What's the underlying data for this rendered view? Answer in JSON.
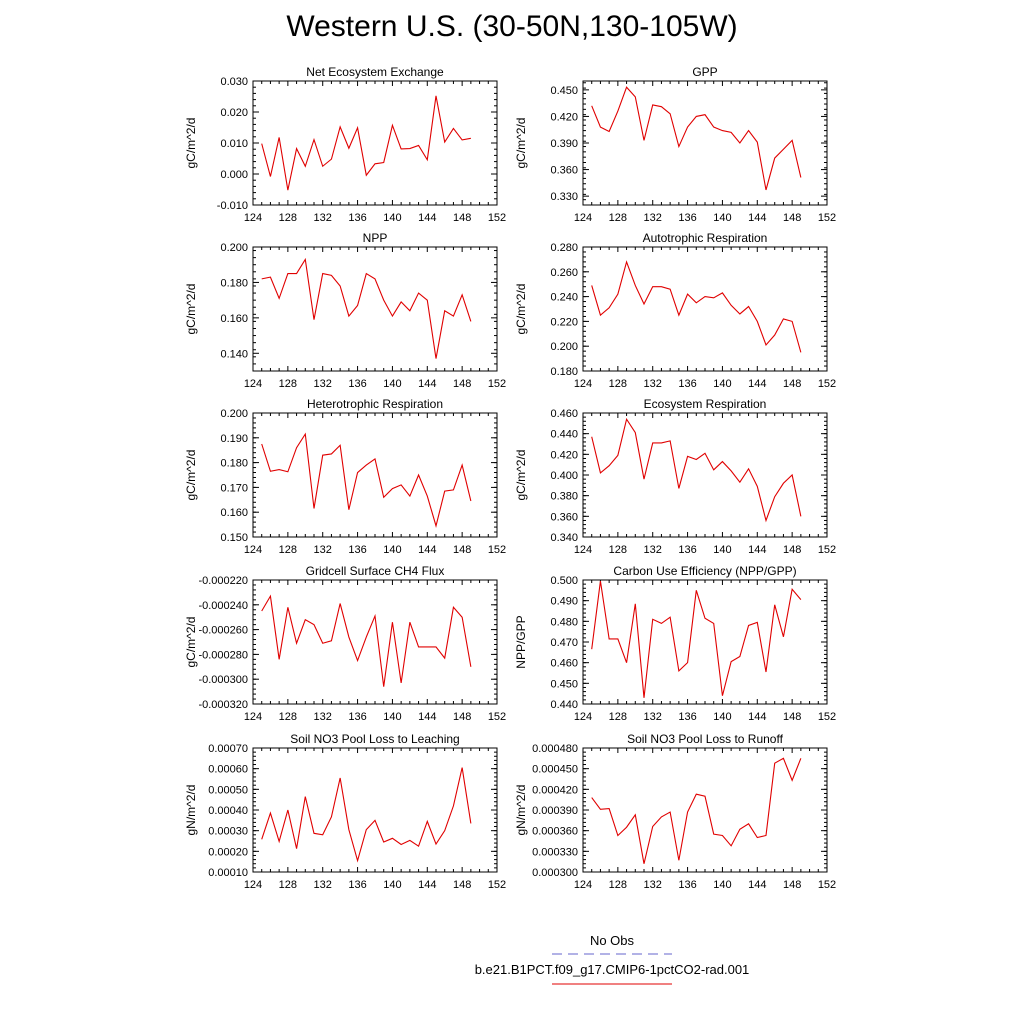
{
  "title": "Western U.S. (30-50N,130-105W)",
  "legend": [
    {
      "label": "No Obs",
      "color": "#6666cc",
      "dash": "dashed"
    },
    {
      "label": "b.e21.B1PCT.f09_g17.CMIP6-1pctCO2-rad.001",
      "color": "#e00000",
      "dash": "solid"
    }
  ],
  "chart_data": [
    {
      "type": "line",
      "title": "Net Ecosystem Exchange",
      "ylabel": "gC/m^2/d",
      "xlim": [
        124,
        152
      ],
      "ylim": [
        -0.01,
        0.03
      ],
      "xticks": [
        "124",
        "128",
        "132",
        "136",
        "140",
        "144",
        "148",
        "152"
      ],
      "yticks": [
        "-0.010",
        "0.000",
        "0.010",
        "0.020",
        "0.030"
      ],
      "x": [
        125,
        126,
        127,
        128,
        129,
        130,
        131,
        132,
        133,
        134,
        135,
        136,
        137,
        138,
        139,
        140,
        141,
        142,
        143,
        144,
        145,
        146,
        147,
        148,
        149
      ],
      "series": [
        {
          "values": [
            0.0098,
            -0.0008,
            0.0118,
            -0.0052,
            0.0082,
            0.0025,
            0.0111,
            0.0025,
            0.0048,
            0.0152,
            0.0083,
            0.0149,
            -0.0004,
            0.0033,
            0.0037,
            0.0157,
            0.0081,
            0.0082,
            0.0092,
            0.0046,
            0.0252,
            0.0103,
            0.0147,
            0.011,
            0.0115
          ],
          "color": "#e00000"
        }
      ]
    },
    {
      "type": "line",
      "title": "GPP",
      "ylabel": "gC/m^2/d",
      "xlim": [
        124,
        152
      ],
      "ylim": [
        0.32,
        0.46
      ],
      "xticks": [
        "124",
        "128",
        "132",
        "136",
        "140",
        "144",
        "148",
        "152"
      ],
      "yticks": [
        "0.330",
        "0.360",
        "0.390",
        "0.420",
        "0.450"
      ],
      "x": [
        125,
        126,
        127,
        128,
        129,
        130,
        131,
        132,
        133,
        134,
        135,
        136,
        137,
        138,
        139,
        140,
        141,
        142,
        143,
        144,
        145,
        146,
        147,
        148,
        149
      ],
      "series": [
        {
          "values": [
            0.432,
            0.408,
            0.403,
            0.426,
            0.453,
            0.442,
            0.393,
            0.433,
            0.431,
            0.423,
            0.386,
            0.408,
            0.42,
            0.422,
            0.408,
            0.404,
            0.402,
            0.39,
            0.404,
            0.391,
            0.337,
            0.373,
            0.383,
            0.393,
            0.351
          ],
          "color": "#e00000"
        }
      ]
    },
    {
      "type": "line",
      "title": "NPP",
      "ylabel": "gC/m^2/d",
      "xlim": [
        124,
        152
      ],
      "ylim": [
        0.13,
        0.2
      ],
      "xticks": [
        "124",
        "128",
        "132",
        "136",
        "140",
        "144",
        "148",
        "152"
      ],
      "yticks": [
        "0.140",
        "0.160",
        "0.180",
        "0.200"
      ],
      "x": [
        125,
        126,
        127,
        128,
        129,
        130,
        131,
        132,
        133,
        134,
        135,
        136,
        137,
        138,
        139,
        140,
        141,
        142,
        143,
        144,
        145,
        146,
        147,
        148,
        149
      ],
      "series": [
        {
          "values": [
            0.182,
            0.183,
            0.171,
            0.185,
            0.185,
            0.193,
            0.159,
            0.185,
            0.184,
            0.178,
            0.161,
            0.167,
            0.185,
            0.182,
            0.17,
            0.161,
            0.169,
            0.164,
            0.174,
            0.17,
            0.137,
            0.164,
            0.161,
            0.173,
            0.158
          ],
          "color": "#e00000"
        }
      ]
    },
    {
      "type": "line",
      "title": "Autotrophic Respiration",
      "ylabel": "gC/m^2/d",
      "xlim": [
        124,
        152
      ],
      "ylim": [
        0.18,
        0.28
      ],
      "xticks": [
        "124",
        "128",
        "132",
        "136",
        "140",
        "144",
        "148",
        "152"
      ],
      "yticks": [
        "0.180",
        "0.200",
        "0.220",
        "0.240",
        "0.260",
        "0.280"
      ],
      "x": [
        125,
        126,
        127,
        128,
        129,
        130,
        131,
        132,
        133,
        134,
        135,
        136,
        137,
        138,
        139,
        140,
        141,
        142,
        143,
        144,
        145,
        146,
        147,
        148,
        149
      ],
      "series": [
        {
          "values": [
            0.249,
            0.225,
            0.231,
            0.242,
            0.268,
            0.249,
            0.234,
            0.248,
            0.248,
            0.246,
            0.225,
            0.242,
            0.235,
            0.24,
            0.239,
            0.243,
            0.233,
            0.226,
            0.232,
            0.22,
            0.201,
            0.209,
            0.222,
            0.22,
            0.195
          ],
          "color": "#e00000"
        }
      ]
    },
    {
      "type": "line",
      "title": "Heterotrophic Respiration",
      "ylabel": "gC/m^2/d",
      "xlim": [
        124,
        152
      ],
      "ylim": [
        0.15,
        0.2
      ],
      "xticks": [
        "124",
        "128",
        "132",
        "136",
        "140",
        "144",
        "148",
        "152"
      ],
      "yticks": [
        "0.150",
        "0.160",
        "0.170",
        "0.180",
        "0.190",
        "0.200"
      ],
      "x": [
        125,
        126,
        127,
        128,
        129,
        130,
        131,
        132,
        133,
        134,
        135,
        136,
        137,
        138,
        139,
        140,
        141,
        142,
        143,
        144,
        145,
        146,
        147,
        148,
        149
      ],
      "series": [
        {
          "values": [
            0.1875,
            0.1765,
            0.1772,
            0.1763,
            0.186,
            0.1915,
            0.1615,
            0.183,
            0.1835,
            0.187,
            0.161,
            0.176,
            0.179,
            0.1815,
            0.166,
            0.1695,
            0.171,
            0.1665,
            0.175,
            0.1665,
            0.1545,
            0.1685,
            0.169,
            0.179,
            0.1645
          ],
          "color": "#e00000"
        }
      ]
    },
    {
      "type": "line",
      "title": "Ecosystem Respiration",
      "ylabel": "gC/m^2/d",
      "xlim": [
        124,
        152
      ],
      "ylim": [
        0.34,
        0.46
      ],
      "xticks": [
        "124",
        "128",
        "132",
        "136",
        "140",
        "144",
        "148",
        "152"
      ],
      "yticks": [
        "0.340",
        "0.360",
        "0.380",
        "0.400",
        "0.420",
        "0.440",
        "0.460"
      ],
      "x": [
        125,
        126,
        127,
        128,
        129,
        130,
        131,
        132,
        133,
        134,
        135,
        136,
        137,
        138,
        139,
        140,
        141,
        142,
        143,
        144,
        145,
        146,
        147,
        148,
        149
      ],
      "series": [
        {
          "values": [
            0.437,
            0.402,
            0.409,
            0.419,
            0.454,
            0.441,
            0.396,
            0.431,
            0.431,
            0.433,
            0.387,
            0.418,
            0.415,
            0.421,
            0.405,
            0.413,
            0.404,
            0.393,
            0.406,
            0.389,
            0.356,
            0.379,
            0.392,
            0.4,
            0.36
          ],
          "color": "#e00000"
        }
      ]
    },
    {
      "type": "line",
      "title": "Gridcell Surface CH4 Flux",
      "ylabel": "gC/m^2/d",
      "xlim": [
        124,
        152
      ],
      "ylim": [
        -0.00032,
        -0.00022
      ],
      "xticks": [
        "124",
        "128",
        "132",
        "136",
        "140",
        "144",
        "148",
        "152"
      ],
      "yticks": [
        "-0.000320",
        "-0.000300",
        "-0.000280",
        "-0.000260",
        "-0.000240",
        "-0.000220"
      ],
      "x": [
        125,
        126,
        127,
        128,
        129,
        130,
        131,
        132,
        133,
        134,
        135,
        136,
        137,
        138,
        139,
        140,
        141,
        142,
        143,
        144,
        145,
        146,
        147,
        148,
        149
      ],
      "series": [
        {
          "values": [
            -0.000245,
            -0.000233,
            -0.000284,
            -0.000242,
            -0.000271,
            -0.000252,
            -0.000256,
            -0.000271,
            -0.000269,
            -0.000239,
            -0.000266,
            -0.000285,
            -0.000266,
            -0.000249,
            -0.000306,
            -0.000254,
            -0.000303,
            -0.000254,
            -0.000274,
            -0.000274,
            -0.000274,
            -0.000283,
            -0.000242,
            -0.00025,
            -0.00029
          ],
          "color": "#e00000"
        }
      ]
    },
    {
      "type": "line",
      "title": "Carbon Use Efficiency (NPP/GPP)",
      "ylabel": "NPP/GPP",
      "xlim": [
        124,
        152
      ],
      "ylim": [
        0.44,
        0.5
      ],
      "xticks": [
        "124",
        "128",
        "132",
        "136",
        "140",
        "144",
        "148",
        "152"
      ],
      "yticks": [
        "0.440",
        "0.450",
        "0.460",
        "0.470",
        "0.480",
        "0.490",
        "0.500"
      ],
      "x": [
        125,
        126,
        127,
        128,
        129,
        130,
        131,
        132,
        133,
        134,
        135,
        136,
        137,
        138,
        139,
        140,
        141,
        142,
        143,
        144,
        145,
        146,
        147,
        148,
        149
      ],
      "series": [
        {
          "values": [
            0.4665,
            0.4995,
            0.4715,
            0.4715,
            0.46,
            0.4885,
            0.443,
            0.481,
            0.479,
            0.482,
            0.456,
            0.46,
            0.495,
            0.4815,
            0.479,
            0.444,
            0.4605,
            0.463,
            0.478,
            0.4795,
            0.4555,
            0.488,
            0.4725,
            0.4955,
            0.4905
          ],
          "color": "#e00000"
        }
      ]
    },
    {
      "type": "line",
      "title": "Soil NO3 Pool Loss to Leaching",
      "ylabel": "gN/m^2/d",
      "xlim": [
        124,
        152
      ],
      "ylim": [
        0.0001,
        0.0007
      ],
      "xticks": [
        "124",
        "128",
        "132",
        "136",
        "140",
        "144",
        "148",
        "152"
      ],
      "yticks": [
        "0.00010",
        "0.00020",
        "0.00030",
        "0.00040",
        "0.00050",
        "0.00060",
        "0.00070"
      ],
      "x": [
        125,
        126,
        127,
        128,
        129,
        130,
        131,
        132,
        133,
        134,
        135,
        136,
        137,
        138,
        139,
        140,
        141,
        142,
        143,
        144,
        145,
        146,
        147,
        148,
        149
      ],
      "series": [
        {
          "values": [
            0.000258,
            0.000385,
            0.000248,
            0.0004,
            0.000213,
            0.000465,
            0.000287,
            0.00028,
            0.000367,
            0.000555,
            0.000305,
            0.000155,
            0.000305,
            0.00035,
            0.000245,
            0.000263,
            0.000233,
            0.000253,
            0.000225,
            0.000345,
            0.000235,
            0.0003,
            0.00042,
            0.000605,
            0.000335
          ],
          "color": "#e00000"
        }
      ]
    },
    {
      "type": "line",
      "title": "Soil NO3 Pool Loss to Runoff",
      "ylabel": "gN/m^2/d",
      "xlim": [
        124,
        152
      ],
      "ylim": [
        0.0003,
        0.00048
      ],
      "xticks": [
        "124",
        "128",
        "132",
        "136",
        "140",
        "144",
        "148",
        "152"
      ],
      "yticks": [
        "0.000300",
        "0.000330",
        "0.000360",
        "0.000390",
        "0.000420",
        "0.000450",
        "0.000480"
      ],
      "x": [
        125,
        126,
        127,
        128,
        129,
        130,
        131,
        132,
        133,
        134,
        135,
        136,
        137,
        138,
        139,
        140,
        141,
        142,
        143,
        144,
        145,
        146,
        147,
        148,
        149
      ],
      "series": [
        {
          "values": [
            0.000408,
            0.000391,
            0.000392,
            0.000353,
            0.000365,
            0.000383,
            0.000312,
            0.000366,
            0.00038,
            0.000387,
            0.000317,
            0.000387,
            0.000413,
            0.00041,
            0.000355,
            0.000353,
            0.000338,
            0.000362,
            0.00037,
            0.00035,
            0.000353,
            0.000458,
            0.000465,
            0.000433,
            0.000465
          ],
          "color": "#e00000"
        }
      ]
    }
  ]
}
